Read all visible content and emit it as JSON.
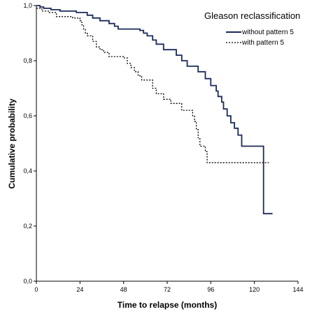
{
  "chart_data": {
    "type": "line",
    "step": true,
    "xlabel": "Time to relapse (months)",
    "ylabel": "Cumulative probability",
    "xlim": [
      0,
      144
    ],
    "ylim": [
      0,
      1
    ],
    "x_ticks": [
      0,
      24,
      48,
      72,
      96,
      120,
      144
    ],
    "y_ticks": [
      "0,0",
      "0,2",
      "0,4",
      "0,6",
      "0,8",
      "1,0"
    ],
    "grid": false,
    "legend": {
      "title": "Gleason reclassification",
      "placement": "top-right"
    },
    "series": [
      {
        "name": "without pattern 5",
        "color": "#1a2a5a",
        "line_style": "solid",
        "points": [
          [
            0,
            1.0
          ],
          [
            2,
            0.995
          ],
          [
            4,
            0.99
          ],
          [
            8,
            0.985
          ],
          [
            13,
            0.98
          ],
          [
            22,
            0.975
          ],
          [
            28,
            0.965
          ],
          [
            31,
            0.955
          ],
          [
            35,
            0.945
          ],
          [
            40,
            0.935
          ],
          [
            43,
            0.925
          ],
          [
            45,
            0.915
          ],
          [
            57,
            0.91
          ],
          [
            59,
            0.9
          ],
          [
            61,
            0.89
          ],
          [
            64,
            0.875
          ],
          [
            66,
            0.86
          ],
          [
            70,
            0.84
          ],
          [
            77,
            0.82
          ],
          [
            80,
            0.8
          ],
          [
            83,
            0.78
          ],
          [
            89,
            0.76
          ],
          [
            93,
            0.735
          ],
          [
            96,
            0.71
          ],
          [
            99,
            0.69
          ],
          [
            100,
            0.67
          ],
          [
            102,
            0.65
          ],
          [
            103,
            0.625
          ],
          [
            105,
            0.6
          ],
          [
            107,
            0.575
          ],
          [
            109,
            0.555
          ],
          [
            111,
            0.53
          ],
          [
            113,
            0.49
          ],
          [
            124,
            0.49
          ],
          [
            125,
            0.245
          ],
          [
            130,
            0.245
          ]
        ]
      },
      {
        "name": "with pattern 5",
        "color": "#000000",
        "line_style": "dashed",
        "points": [
          [
            0,
            0.99
          ],
          [
            3,
            0.98
          ],
          [
            7,
            0.975
          ],
          [
            11,
            0.96
          ],
          [
            20,
            0.955
          ],
          [
            24,
            0.945
          ],
          [
            25,
            0.93
          ],
          [
            26,
            0.915
          ],
          [
            27,
            0.9
          ],
          [
            28,
            0.89
          ],
          [
            31,
            0.87
          ],
          [
            33,
            0.85
          ],
          [
            35,
            0.84
          ],
          [
            37,
            0.83
          ],
          [
            40,
            0.815
          ],
          [
            48,
            0.81
          ],
          [
            50,
            0.79
          ],
          [
            52,
            0.775
          ],
          [
            54,
            0.76
          ],
          [
            56,
            0.745
          ],
          [
            58,
            0.73
          ],
          [
            64,
            0.7
          ],
          [
            66,
            0.68
          ],
          [
            70,
            0.66
          ],
          [
            74,
            0.645
          ],
          [
            80,
            0.62
          ],
          [
            86,
            0.6
          ],
          [
            87,
            0.58
          ],
          [
            88,
            0.55
          ],
          [
            89,
            0.52
          ],
          [
            90,
            0.49
          ],
          [
            93,
            0.47
          ],
          [
            94,
            0.43
          ],
          [
            128,
            0.43
          ]
        ]
      }
    ]
  }
}
